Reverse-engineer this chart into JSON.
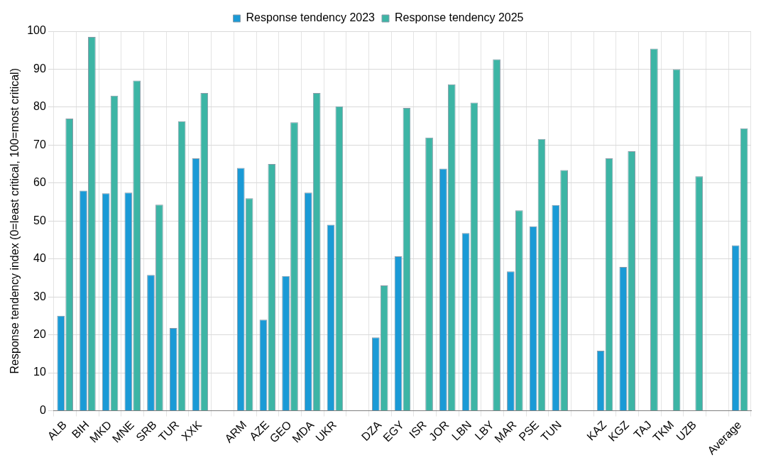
{
  "chart_data": {
    "type": "bar",
    "ylabel": "Response tendency index (0=least critical, 100=most critical)",
    "categories": [
      "ALB",
      "BIH",
      "MKD",
      "MNE",
      "SRB",
      "TUR",
      "XXK",
      null,
      "ARM",
      "AZE",
      "GEO",
      "MDA",
      "UKR",
      null,
      "DZA",
      "EGY",
      "ISR",
      "JOR",
      "LBN",
      "LBY",
      "MAR",
      "PSE",
      "TUN",
      null,
      "KAZ",
      "KGZ",
      "TAJ",
      "TKM",
      "UZB",
      null,
      "Average"
    ],
    "series": [
      {
        "name": "Response tendency 2023",
        "color": "#1a9ad6",
        "values": [
          25,
          58,
          57.3,
          57.5,
          35.8,
          21.8,
          66.5,
          null,
          64,
          24,
          35.5,
          57.5,
          49,
          null,
          19.3,
          40.7,
          null,
          63.8,
          46.8,
          null,
          36.7,
          48.6,
          54.2,
          null,
          15.8,
          37.9,
          null,
          null,
          null,
          null,
          43.6
        ]
      },
      {
        "name": "Response tendency 2025",
        "color": "#3db5a5",
        "values": [
          77,
          98.5,
          83,
          87,
          54.3,
          76.3,
          83.7,
          null,
          56,
          65,
          76,
          83.7,
          80.2,
          null,
          33,
          79.8,
          72,
          86,
          81.2,
          92.6,
          52.8,
          71.6,
          63.4,
          null,
          66.5,
          68.4,
          95.4,
          90,
          61.8,
          null,
          74.4
        ]
      }
    ],
    "ylim": [
      0,
      100
    ],
    "yticks": [
      0,
      10,
      20,
      30,
      40,
      50,
      60,
      70,
      80,
      90,
      100
    ],
    "grid": true,
    "legend": "top"
  }
}
